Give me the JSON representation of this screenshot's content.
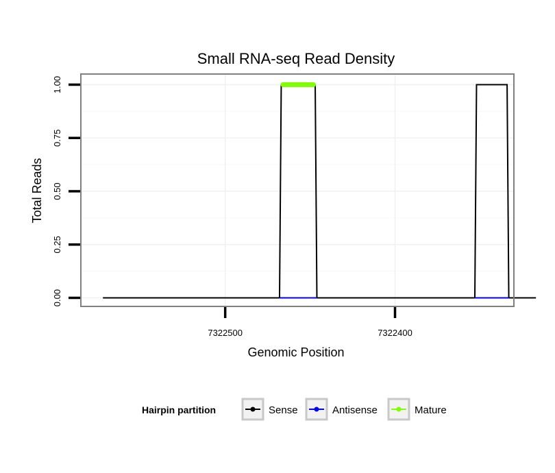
{
  "chart_data": {
    "type": "line",
    "title": "Small RNA-seq Read Density",
    "xlabel": "Genomic Position",
    "ylabel": "Total Reads",
    "x_reversed": true,
    "xlim": [
      7322585,
      7322330
    ],
    "ylim": [
      -0.04,
      1.05
    ],
    "x_ticks": [
      7322500,
      7322400
    ],
    "x_tick_labels": [
      "7322500",
      "7322400"
    ],
    "y_ticks": [
      0,
      0.25,
      0.5,
      0.75,
      1
    ],
    "y_tick_labels": [
      "0.00",
      "0.25",
      "0.50",
      "0.75",
      "1.00"
    ],
    "grid": true,
    "series": [
      {
        "name": "Sense",
        "color": "#000000",
        "points": [
          [
            7322572,
            0
          ],
          [
            7322468,
            0
          ],
          [
            7322467,
            1
          ],
          [
            7322447,
            1
          ],
          [
            7322446,
            0
          ],
          [
            7322353,
            0
          ],
          [
            7322352,
            1
          ],
          [
            7322334,
            1
          ],
          [
            7322333,
            0
          ],
          [
            7322317,
            0
          ]
        ]
      },
      {
        "name": "Antisense",
        "color": "#0000ff",
        "points": [
          [
            7322468,
            0
          ],
          [
            7322446,
            0
          ],
          [
            7322353,
            0
          ],
          [
            7322333,
            0
          ]
        ],
        "segments": [
          [
            0,
            1
          ],
          [
            2,
            3
          ]
        ]
      },
      {
        "name": "Mature",
        "color": "#7fff00",
        "points": [
          [
            7322466,
            1
          ],
          [
            7322448,
            1
          ]
        ]
      }
    ],
    "legend": {
      "title": "Hairpin partition",
      "position": "bottom",
      "entries": [
        "Sense",
        "Antisense",
        "Mature"
      ]
    }
  }
}
